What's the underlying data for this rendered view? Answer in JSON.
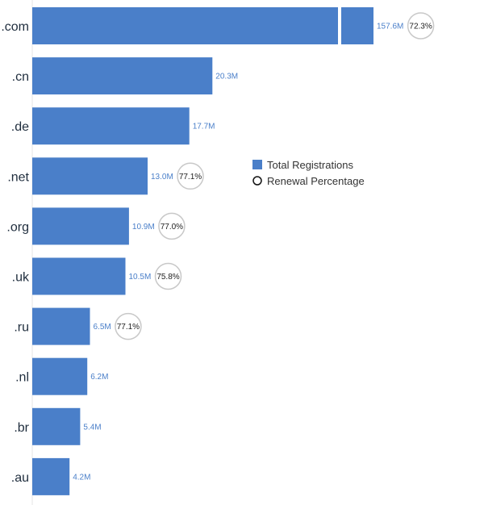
{
  "chart_data": {
    "type": "bar",
    "orientation": "horizontal",
    "categories": [
      ".com",
      ".cn",
      ".de",
      ".net",
      ".org",
      ".uk",
      ".ru",
      ".nl",
      ".br",
      ".au"
    ],
    "series": [
      {
        "name": "Total Registrations",
        "values": [
          157.6,
          20.3,
          17.7,
          13.0,
          10.9,
          10.5,
          6.5,
          6.2,
          5.4,
          4.2
        ],
        "labels": [
          "157.6M",
          "20.3M",
          "17.7M",
          "13.0M",
          "10.9M",
          "10.5M",
          "6.5M",
          "6.2M",
          "5.4M",
          "4.2M"
        ],
        "unit": "M"
      },
      {
        "name": "Renewal Percentage",
        "values": [
          72.3,
          null,
          null,
          77.1,
          77.0,
          75.8,
          77.1,
          null,
          null,
          null
        ],
        "labels": [
          "72.3%",
          "",
          "",
          "77.1%",
          "77.0%",
          "75.8%",
          "77.1%",
          "",
          "",
          ""
        ]
      }
    ],
    "axis_break": {
      "on_category": ".com",
      "note": "bar truncated with a break"
    },
    "legend": {
      "position": "right",
      "items": [
        "Total Registrations",
        "Renewal Percentage"
      ]
    },
    "grid": false,
    "colors": {
      "bar": "#4a7fc9",
      "label": "#4a7fc9",
      "circle_stroke": "#c8c8c8",
      "text": "#1f2d3d"
    }
  }
}
